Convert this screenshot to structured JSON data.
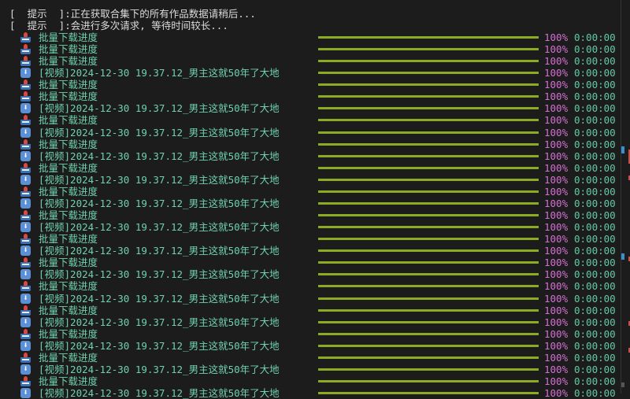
{
  "hints": [
    {
      "bracket_open": "[",
      "tag": "提示",
      "bracket_close": "]",
      "message": ":正在获取合集下的所有作品数据请稍后..."
    },
    {
      "bracket_open": "[",
      "tag": "提示",
      "bracket_close": "]",
      "message": ":会进行多次请求, 等待时间较长..."
    }
  ],
  "colors": {
    "bar": "#8bab23",
    "percent": "#d56fd3",
    "time": "#63c9a6",
    "label": "#6fd1ad",
    "background": "#1c1c1c"
  },
  "rows": [
    {
      "icon": "inbox-tray-icon",
      "label": "批量下载进度",
      "progress": 100,
      "percent": "100%",
      "time": "0:00:00"
    },
    {
      "icon": "inbox-tray-icon",
      "label": "批量下载进度",
      "progress": 100,
      "percent": "100%",
      "time": "0:00:00"
    },
    {
      "icon": "inbox-tray-icon",
      "label": "批量下载进度",
      "progress": 100,
      "percent": "100%",
      "time": "0:00:00"
    },
    {
      "icon": "down-arrow-icon",
      "label": "[视频]2024-12-30 19.37.12_男主这就50年了大地",
      "progress": 100,
      "percent": "100%",
      "time": "0:00:00"
    },
    {
      "icon": "inbox-tray-icon",
      "label": "批量下载进度",
      "progress": 100,
      "percent": "100%",
      "time": "0:00:00"
    },
    {
      "icon": "inbox-tray-icon",
      "label": "批量下载进度",
      "progress": 100,
      "percent": "100%",
      "time": "0:00:00"
    },
    {
      "icon": "down-arrow-icon",
      "label": "[视频]2024-12-30 19.37.12_男主这就50年了大地",
      "progress": 100,
      "percent": "100%",
      "time": "0:00:00"
    },
    {
      "icon": "inbox-tray-icon",
      "label": "批量下载进度",
      "progress": 100,
      "percent": "100%",
      "time": "0:00:00"
    },
    {
      "icon": "down-arrow-icon",
      "label": "[视频]2024-12-30 19.37.12_男主这就50年了大地",
      "progress": 100,
      "percent": "100%",
      "time": "0:00:00"
    },
    {
      "icon": "inbox-tray-icon",
      "label": "批量下载进度",
      "progress": 100,
      "percent": "100%",
      "time": "0:00:00"
    },
    {
      "icon": "down-arrow-icon",
      "label": "[视频]2024-12-30 19.37.12_男主这就50年了大地",
      "progress": 100,
      "percent": "100%",
      "time": "0:00:00"
    },
    {
      "icon": "inbox-tray-icon",
      "label": "批量下载进度",
      "progress": 100,
      "percent": "100%",
      "time": "0:00:00"
    },
    {
      "icon": "down-arrow-icon",
      "label": "[视频]2024-12-30 19.37.12_男主这就50年了大地",
      "progress": 100,
      "percent": "100%",
      "time": "0:00:00"
    },
    {
      "icon": "inbox-tray-icon",
      "label": "批量下载进度",
      "progress": 100,
      "percent": "100%",
      "time": "0:00:00"
    },
    {
      "icon": "down-arrow-icon",
      "label": "[视频]2024-12-30 19.37.12_男主这就50年了大地",
      "progress": 100,
      "percent": "100%",
      "time": "0:00:00"
    },
    {
      "icon": "inbox-tray-icon",
      "label": "批量下载进度",
      "progress": 100,
      "percent": "100%",
      "time": "0:00:00"
    },
    {
      "icon": "down-arrow-icon",
      "label": "[视频]2024-12-30 19.37.12_男主这就50年了大地",
      "progress": 100,
      "percent": "100%",
      "time": "0:00:00"
    },
    {
      "icon": "inbox-tray-icon",
      "label": "批量下载进度",
      "progress": 100,
      "percent": "100%",
      "time": "0:00:00"
    },
    {
      "icon": "down-arrow-icon",
      "label": "[视频]2024-12-30 19.37.12_男主这就50年了大地",
      "progress": 100,
      "percent": "100%",
      "time": "0:00:00"
    },
    {
      "icon": "inbox-tray-icon",
      "label": "批量下载进度",
      "progress": 100,
      "percent": "100%",
      "time": "0:00:00"
    },
    {
      "icon": "down-arrow-icon",
      "label": "[视频]2024-12-30 19.37.12_男主这就50年了大地",
      "progress": 100,
      "percent": "100%",
      "time": "0:00:00"
    },
    {
      "icon": "inbox-tray-icon",
      "label": "批量下载进度",
      "progress": 100,
      "percent": "100%",
      "time": "0:00:00"
    },
    {
      "icon": "down-arrow-icon",
      "label": "[视频]2024-12-30 19.37.12_男主这就50年了大地",
      "progress": 100,
      "percent": "100%",
      "time": "0:00:00"
    },
    {
      "icon": "inbox-tray-icon",
      "label": "批量下载进度",
      "progress": 100,
      "percent": "100%",
      "time": "0:00:00"
    },
    {
      "icon": "down-arrow-icon",
      "label": "[视频]2024-12-30 19.37.12_男主这就50年了大地",
      "progress": 100,
      "percent": "100%",
      "time": "0:00:00"
    },
    {
      "icon": "inbox-tray-icon",
      "label": "批量下载进度",
      "progress": 100,
      "percent": "100%",
      "time": "0:00:00"
    },
    {
      "icon": "down-arrow-icon",
      "label": "[视频]2024-12-30 19.37.12_男主这就50年了大地",
      "progress": 100,
      "percent": "100%",
      "time": "0:00:00"
    },
    {
      "icon": "inbox-tray-icon",
      "label": "批量下载进度",
      "progress": 100,
      "percent": "100%",
      "time": "0:00:00"
    },
    {
      "icon": "down-arrow-icon",
      "label": "[视频]2024-12-30 19.37.12_男主这就50年了大地",
      "progress": 100,
      "percent": "100%",
      "time": "0:00:00"
    },
    {
      "icon": "inbox-tray-icon",
      "label": "批量下载进度",
      "progress": 100,
      "percent": "100%",
      "time": "0:00:00"
    },
    {
      "icon": "down-arrow-icon",
      "label": "[视频]2024-12-30 19.37.12_男主这就50年了大地",
      "progress": 100,
      "percent": "100%",
      "time": "0:00:00"
    }
  ]
}
